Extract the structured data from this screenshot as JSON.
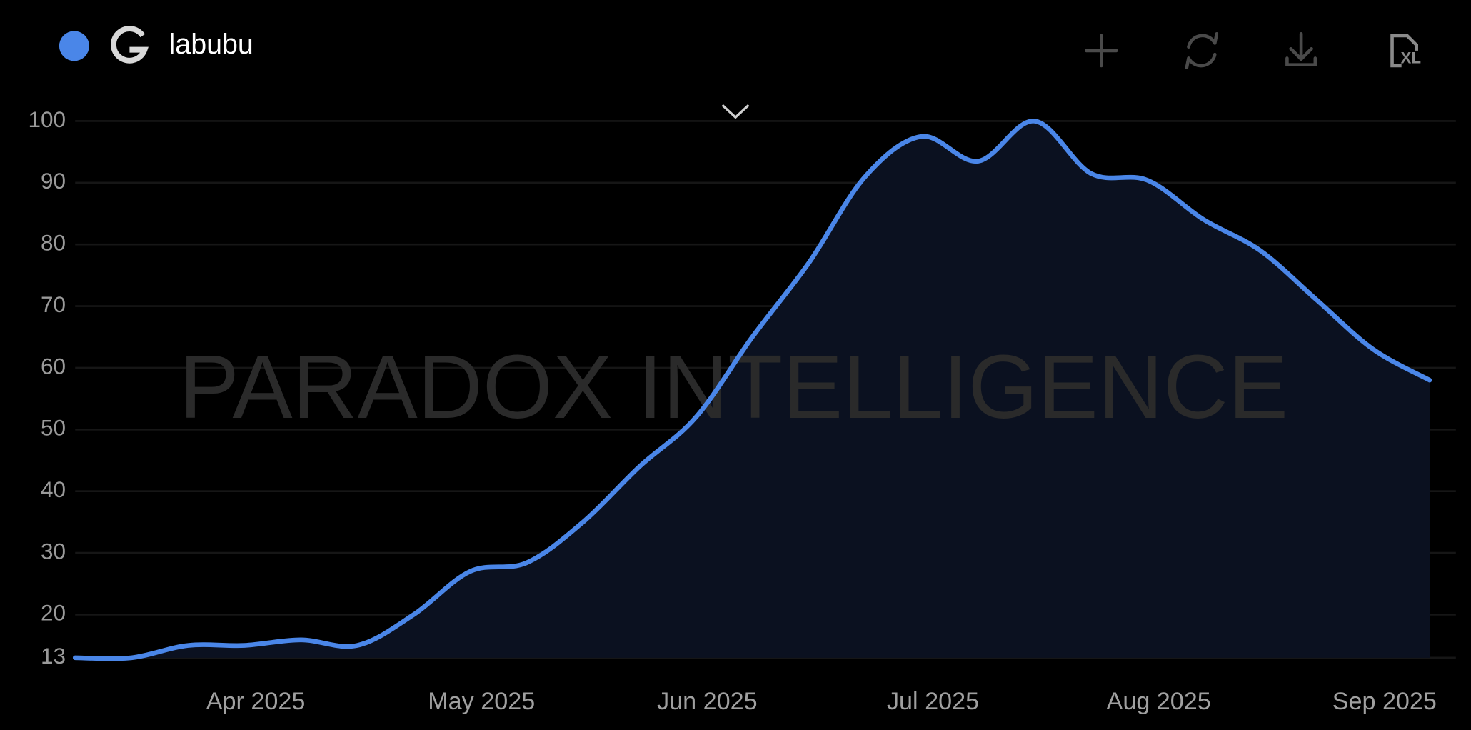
{
  "chart_data": {
    "type": "line",
    "categories": [
      null,
      null,
      null,
      "Apr 2025",
      null,
      null,
      null,
      "May 2025",
      null,
      null,
      null,
      "Jun 2025",
      null,
      null,
      null,
      "Jul 2025",
      null,
      null,
      null,
      "Aug 2025",
      null,
      null,
      null,
      "Sep 2025",
      null
    ],
    "series": [
      {
        "name": "labubu",
        "color": "#4a86e8",
        "values": [
          13,
          13,
          15,
          15,
          15.9,
          15,
          20,
          27,
          28.4,
          35,
          44,
          52,
          65,
          77,
          91,
          97.5,
          93.5,
          100,
          91.5,
          90.4,
          84,
          79,
          71,
          63,
          58
        ]
      }
    ],
    "ylim": [
      13,
      100
    ],
    "yticks": [
      13,
      20,
      30,
      40,
      50,
      60,
      70,
      80,
      90,
      100
    ],
    "grid": true,
    "watermark": "PARADOX INTELLIGENCE"
  },
  "toolbar": {
    "export_label": "XL"
  }
}
